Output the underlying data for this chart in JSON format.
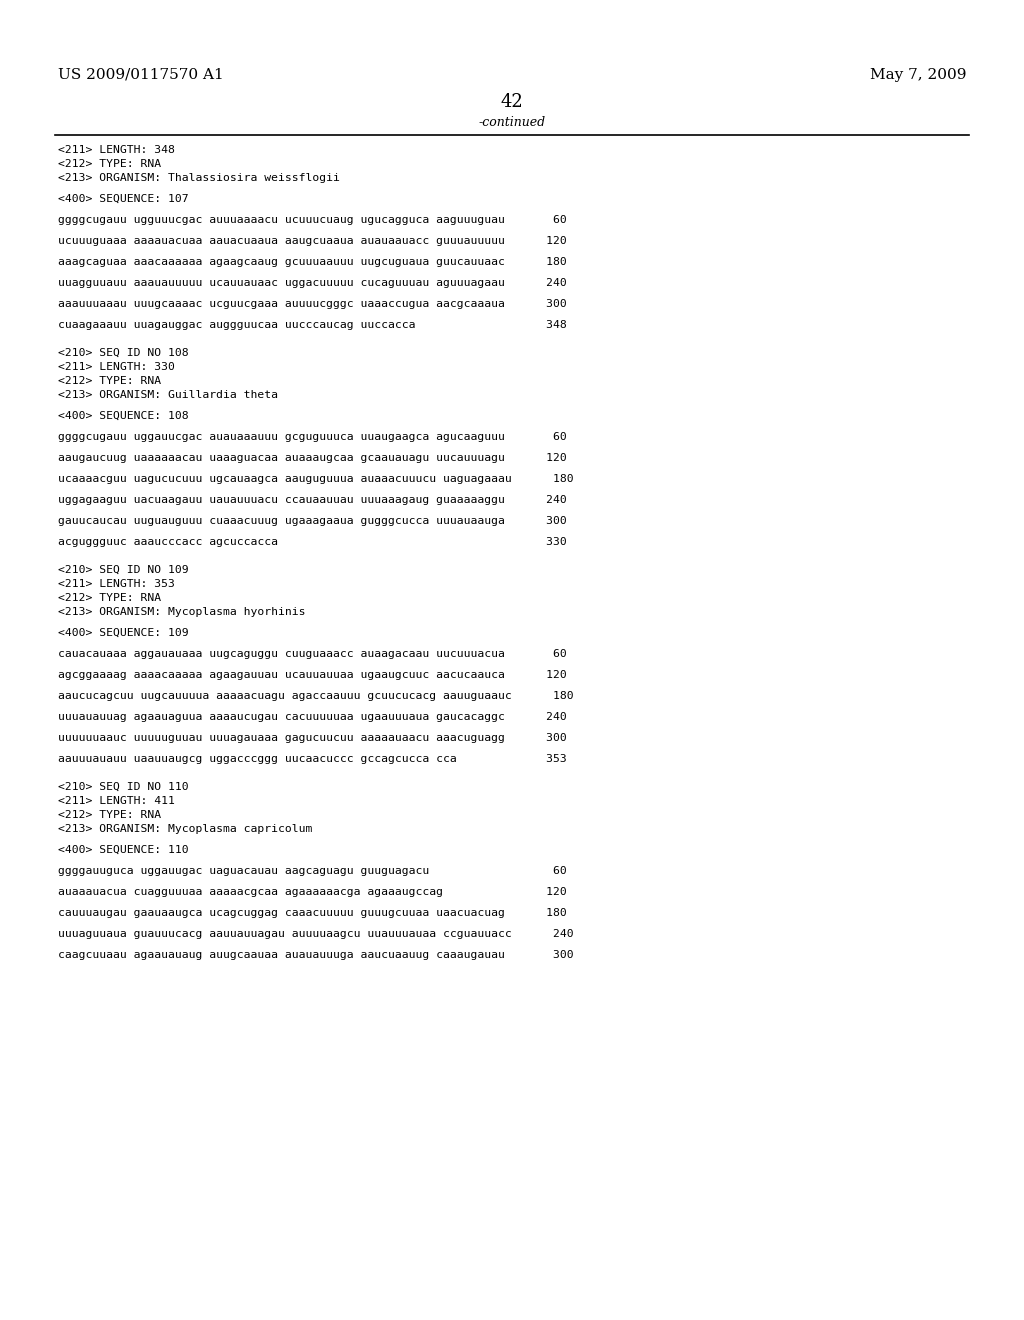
{
  "bg_color": "#ffffff",
  "header_left": "US 2009/0117570 A1",
  "header_right": "May 7, 2009",
  "page_number": "42",
  "continued_text": "-continued",
  "content_lines": [
    "<211> LENGTH: 348",
    "<212> TYPE: RNA",
    "<213> ORGANISM: Thalassiosira weissflogii",
    "",
    "<400> SEQUENCE: 107",
    "",
    "ggggcugauu ugguuucgac auuuaaaacu ucuuucuaug ugucagguca aaguuuguau       60",
    "",
    "ucuuuguaaa aaaauacuaa aauacuaaua aaugcuaaua auauaauacc guuuauuuuu      120",
    "",
    "aaagcaguaa aaacaaaaaa agaagcaaug gcuuuaauuu uugcuguaua guucauuaac      180",
    "",
    "uuagguuauu aaauauuuuu ucauuauaac uggacuuuuu cucaguuuau aguuuagaau      240",
    "",
    "aaauuuaaau uuugcaaaac ucguucgaaa auuuucgggc uaaaccugua aacgcaaaua      300",
    "",
    "cuaagaaauu uuagauggac auggguucaa uucccaucag uuccacca                   348",
    "",
    "",
    "<210> SEQ ID NO 108",
    "<211> LENGTH: 330",
    "<212> TYPE: RNA",
    "<213> ORGANISM: Guillardia theta",
    "",
    "<400> SEQUENCE: 108",
    "",
    "ggggcugauu uggauucgac auauaaauuu gcguguuuca uuaugaagca agucaaguuu       60",
    "",
    "aaugaucuug uaaaaaacau uaaaguacaa auaaaugcaa gcaauauagu uucauuuagu      120",
    "",
    "ucaaaacguu uagucucuuu ugcauaagca aauguguuua auaaacuuucu uaguagaaau      180",
    "",
    "uggagaaguu uacuaagauu uauauuuacu ccauaauuau uuuaaagaug guaaaaaggu      240",
    "",
    "gauucaucau uuguauguuu cuaaacuuug ugaaagaaua gugggcucca uuuauaauga      300",
    "",
    "acguggguuc aaaucccacc agcuccacca                                       330",
    "",
    "",
    "<210> SEQ ID NO 109",
    "<211> LENGTH: 353",
    "<212> TYPE: RNA",
    "<213> ORGANISM: Mycoplasma hyorhinis",
    "",
    "<400> SEQUENCE: 109",
    "",
    "cauacauaaa aggauauaaa uugcaguggu cuuguaaacc auaagacaau uucuuuacua       60",
    "",
    "agcggaaaag aaaacaaaaa agaagauuau ucauuauuaa ugaaugcuuc aacucaauca      120",
    "",
    "aaucucagcuu uugcauuuua aaaaacuagu agaccaauuu gcuucucacg aauuguaauc      180",
    "",
    "uuuauauuag agaauaguua aaaaucugau cacuuuuuaa ugaauuuaua gaucacaggc      240",
    "",
    "uuuuuuaauc uuuuuguuau uuuagauaaa gagucuucuu aaaaauaacu aaacuguagg      300",
    "",
    "aauuuauauu uaauuaugcg uggacccggg uucaacuccc gccagcucca cca             353",
    "",
    "",
    "<210> SEQ ID NO 110",
    "<211> LENGTH: 411",
    "<212> TYPE: RNA",
    "<213> ORGANISM: Mycoplasma capricolum",
    "",
    "<400> SEQUENCE: 110",
    "",
    "ggggauuguca uggauugac uaguacauau aagcaguagu guuguagacu                  60",
    "",
    "auaaauacua cuagguuuaa aaaaacgcaa agaaaaaacga agaaaugccag               120",
    "",
    "cauuuaugau gaauaaugca ucagcuggag caaacuuuuu guuugcuuaa uaacuacuag      180",
    "",
    "uuuaguuaua guauuucacg aauuauuagau auuuuaagcu uuauuuauaa ccguauuacc      240",
    "",
    "caagcuuaau agaauauaug auugcaauaa auauauuuga aaucuaauug caaaugauau       300"
  ]
}
